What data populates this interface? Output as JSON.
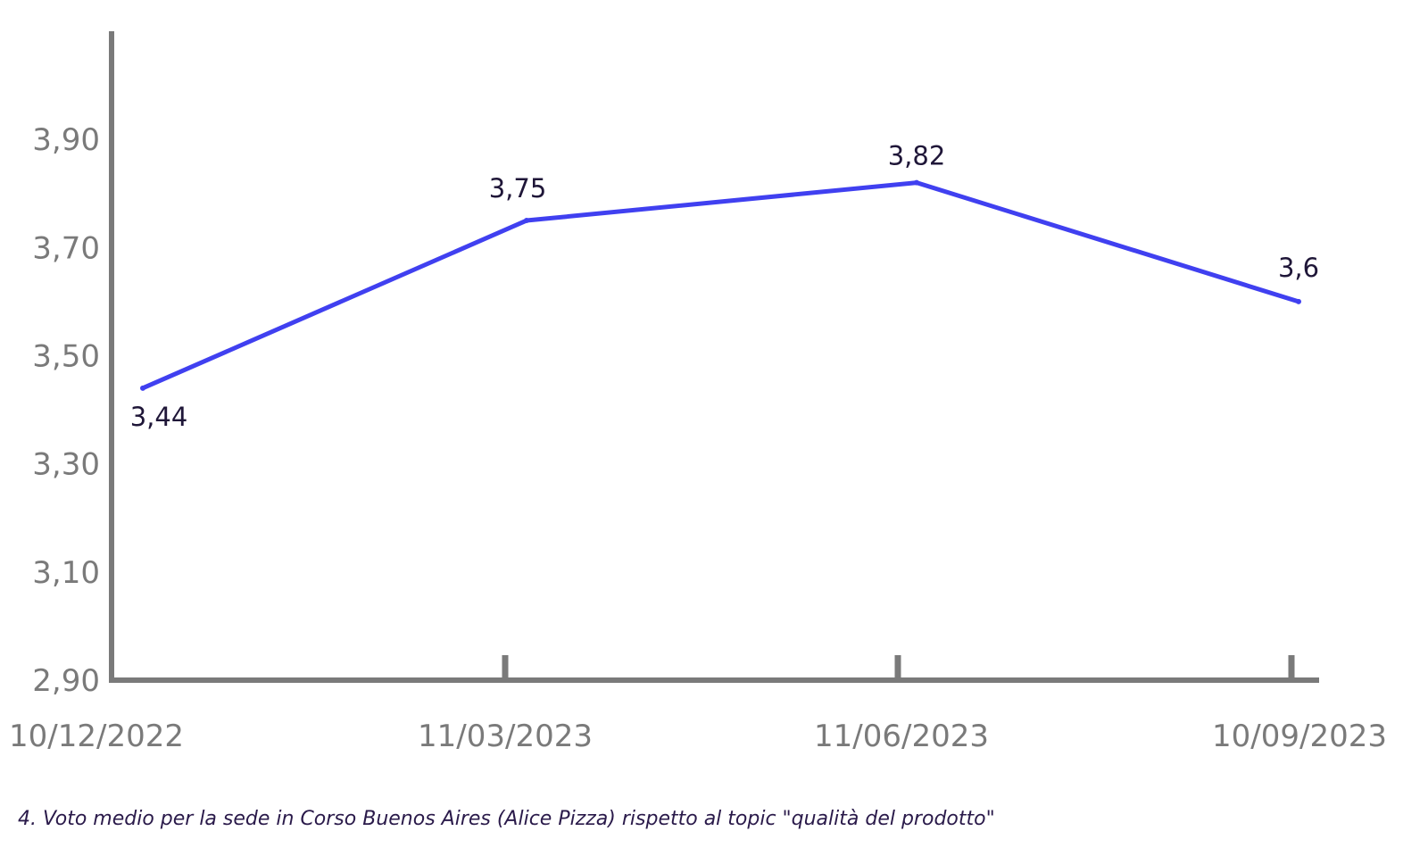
{
  "chart_data": {
    "type": "line",
    "x": [
      "10/12/2022",
      "11/03/2023",
      "11/06/2023",
      "10/09/2023"
    ],
    "series": [
      {
        "values": [
          3.44,
          3.75,
          3.82,
          3.6
        ],
        "labels": [
          "3,44",
          "3,75",
          "3,82",
          "3,6"
        ],
        "color": "#4040f0"
      }
    ],
    "y_ticks": [
      2.9,
      3.1,
      3.3,
      3.5,
      3.7,
      3.9
    ],
    "y_tick_labels": [
      "2,90",
      "3,10",
      "3,30",
      "3,50",
      "3,70",
      "3,90"
    ],
    "x_tick_labels": [
      "10/12/2022",
      "11/03/2023",
      "11/06/2023",
      "10/09/2023"
    ],
    "ylim": [
      2.9,
      4.1
    ],
    "grid": false,
    "legend": "none",
    "axis_color": "#7a7a7a"
  },
  "caption": "4. Voto medio per la sede in Corso Buenos Aires (Alice Pizza) rispetto al topic \"qualità del prodotto\""
}
